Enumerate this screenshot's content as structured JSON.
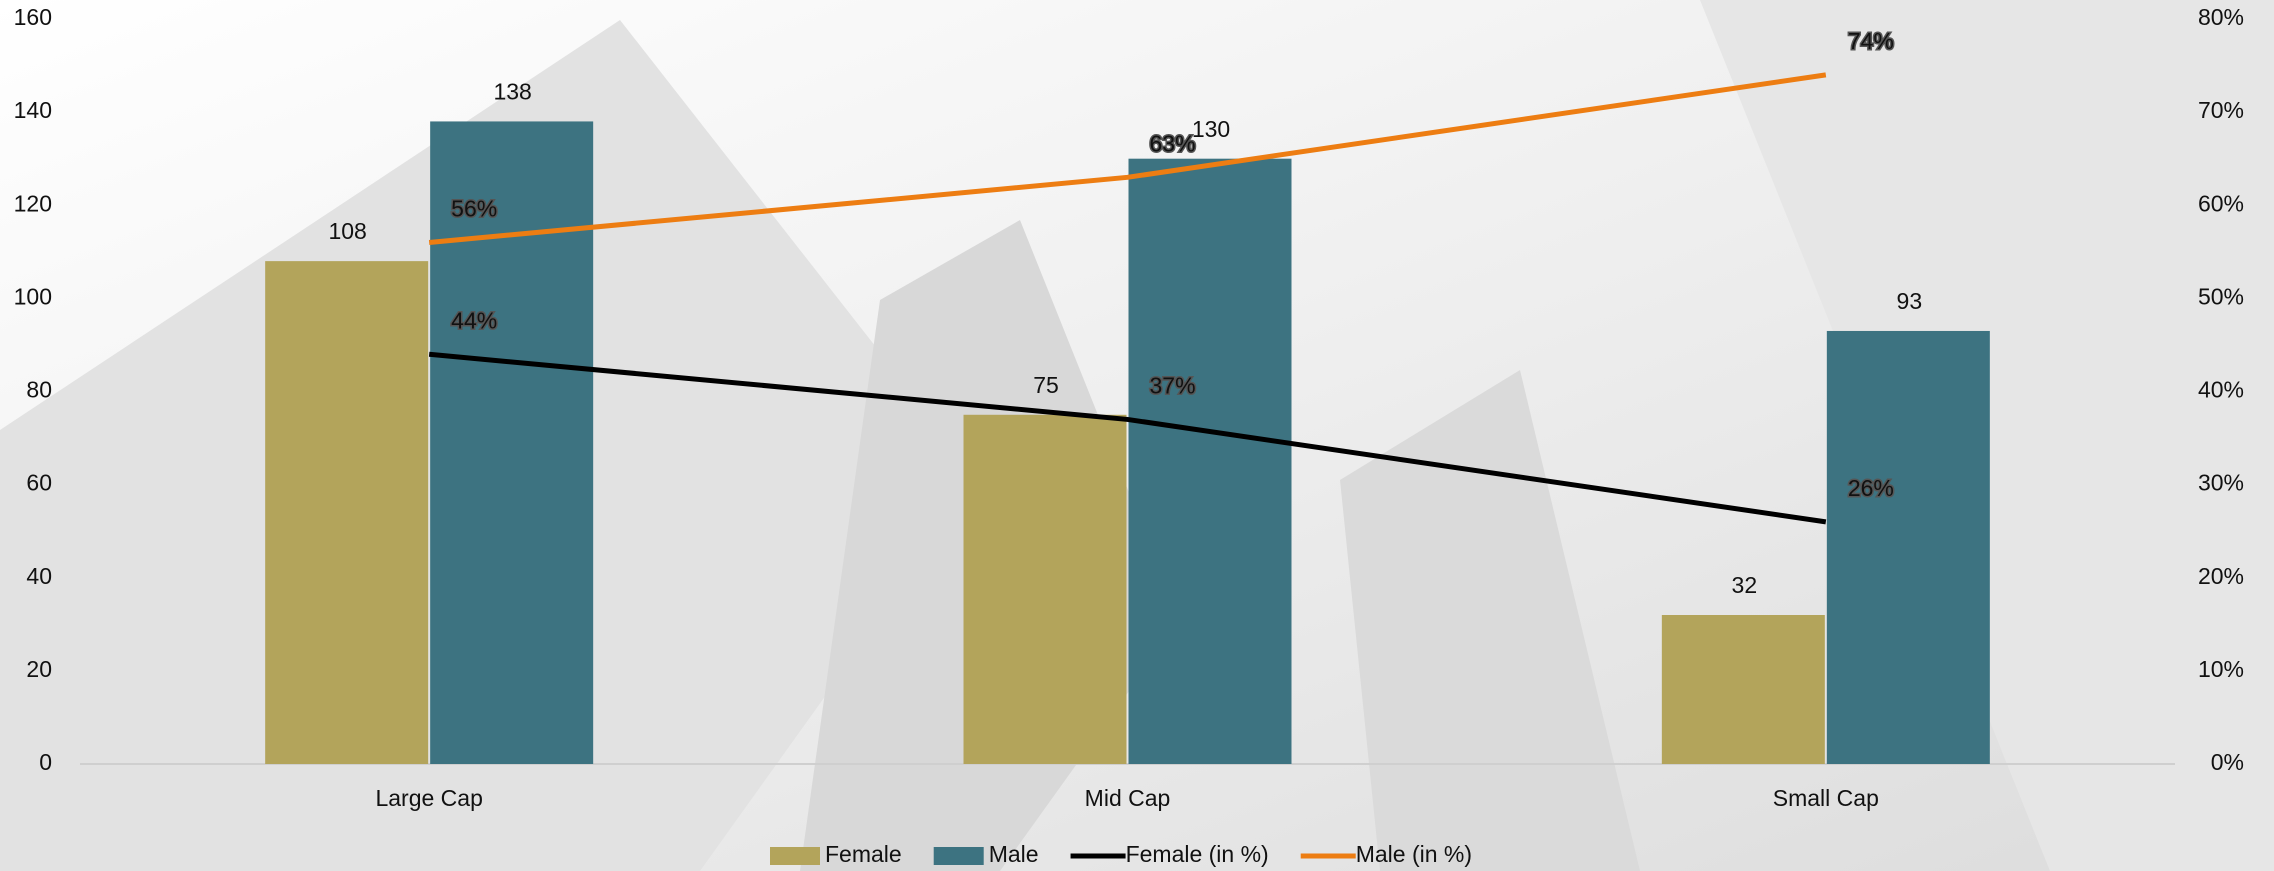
{
  "chart_data": {
    "type": "bar",
    "categories": [
      "Large Cap",
      "Mid Cap",
      "Small Cap"
    ],
    "series": [
      {
        "name": "Female",
        "type": "bar",
        "color": "#b3a45b",
        "values": [
          108,
          75,
          32
        ]
      },
      {
        "name": "Male",
        "type": "bar",
        "color": "#3d7381",
        "values": [
          138,
          130,
          93
        ]
      },
      {
        "name": "Female (in %)",
        "type": "line",
        "axis": "y2",
        "color": "#000000",
        "values": [
          44,
          37,
          26
        ],
        "value_labels": [
          "44%",
          "37%",
          "26%"
        ]
      },
      {
        "name": "Male (in %)",
        "type": "line",
        "axis": "y2",
        "color": "#ed7d12",
        "values": [
          56,
          63,
          74
        ],
        "value_labels": [
          "56%",
          "63%",
          "74%"
        ]
      }
    ],
    "ylim": [
      0,
      160
    ],
    "yticks": [
      0,
      20,
      40,
      60,
      80,
      100,
      120,
      140,
      160
    ],
    "y2lim": [
      0,
      80
    ],
    "y2ticks": [
      {
        "value": 0,
        "label": "0%"
      },
      {
        "value": 10,
        "label": "10%"
      },
      {
        "value": 20,
        "label": "20%"
      },
      {
        "value": 30,
        "label": "30%"
      },
      {
        "value": 40,
        "label": "40%"
      },
      {
        "value": 50,
        "label": "50%"
      },
      {
        "value": 60,
        "label": "60%"
      },
      {
        "value": 70,
        "label": "70%"
      },
      {
        "value": 80,
        "label": "80%"
      }
    ],
    "legend": "bottom"
  }
}
